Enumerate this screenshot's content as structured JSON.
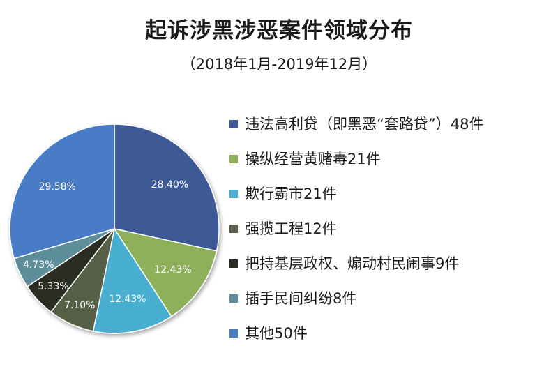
{
  "title": "起诉涉黑涉恶案件领域分布",
  "subtitle": "（2018年1月-2019年12月）",
  "chart_data": {
    "type": "pie",
    "legend_position": "right",
    "slices": [
      {
        "legend": "违法高利贷（即黑恶“套路贷”）48件",
        "value": 48,
        "percent_label": "28.40%",
        "color": "#3d5a96"
      },
      {
        "legend": "操纵经营黄赌毒21件",
        "value": 21,
        "percent_label": "12.43%",
        "color": "#8fb05a"
      },
      {
        "legend": "欺行霸市21件",
        "value": 21,
        "percent_label": "12.43%",
        "color": "#4aafd1"
      },
      {
        "legend": "强揽工程12件",
        "value": 12,
        "percent_label": "7.10%",
        "color": "#566046"
      },
      {
        "legend": "把持基层政权、煽动村民闹事9件",
        "value": 9,
        "percent_label": "5.33%",
        "color": "#2a2d24"
      },
      {
        "legend": "插手民间纠纷8件",
        "value": 8,
        "percent_label": "4.73%",
        "color": "#5d8e9a"
      },
      {
        "legend": "其他50件",
        "value": 50,
        "percent_label": "29.58%",
        "color": "#4a7cc6"
      }
    ]
  }
}
